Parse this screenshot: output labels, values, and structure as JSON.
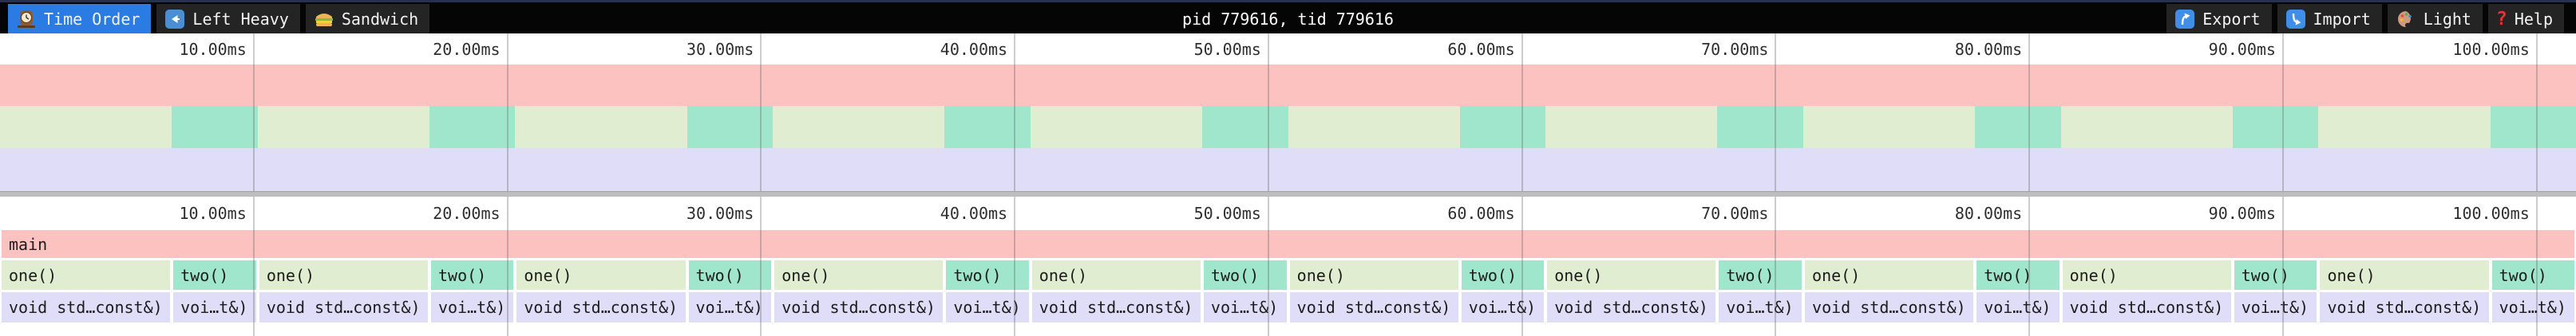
{
  "navbar": {
    "title": "pid 779616, tid 779616",
    "tabs": [
      {
        "label": "Time Order",
        "icon": "clock-icon",
        "active": true
      },
      {
        "label": "Left Heavy",
        "icon": "left-arrow-icon",
        "active": false
      },
      {
        "label": "Sandwich",
        "icon": "sandwich-icon",
        "active": false
      }
    ],
    "actions": [
      {
        "label": "Export",
        "icon": "export-up-arrow-icon"
      },
      {
        "label": "Import",
        "icon": "import-down-arrow-icon"
      },
      {
        "label": "Light",
        "icon": "palette-icon"
      },
      {
        "label": "Help",
        "icon": "help-question-icon"
      }
    ]
  },
  "ruler": {
    "unit": "ms",
    "ticks": [
      {
        "ms": 10,
        "label": "10.00ms"
      },
      {
        "ms": 20,
        "label": "20.00ms"
      },
      {
        "ms": 30,
        "label": "30.00ms"
      },
      {
        "ms": 40,
        "label": "40.00ms"
      },
      {
        "ms": 50,
        "label": "50.00ms"
      },
      {
        "ms": 60,
        "label": "60.00ms"
      },
      {
        "ms": 70,
        "label": "70.00ms"
      },
      {
        "ms": 80,
        "label": "80.00ms"
      },
      {
        "ms": 90,
        "label": "90.00ms"
      },
      {
        "ms": 100,
        "label": "100.00ms"
      }
    ]
  },
  "chart_data": {
    "type": "flamechart",
    "time_unit": "ms",
    "total_ms": 101.55,
    "axis_ticks_ms": [
      10,
      20,
      30,
      40,
      50,
      60,
      70,
      80,
      90,
      100
    ],
    "levels": [
      {
        "depth": 0,
        "frames": [
          {
            "label": "main",
            "color": "main",
            "start_ms": 0,
            "end_ms": 101.55
          }
        ]
      },
      {
        "depth": 1,
        "frames": [
          {
            "label": "one()",
            "color": "one",
            "start_ms": 0,
            "end_ms": 6.77
          },
          {
            "label": "two()",
            "color": "two",
            "start_ms": 6.77,
            "end_ms": 10.16
          },
          {
            "label": "one()",
            "color": "one",
            "start_ms": 10.16,
            "end_ms": 16.93
          },
          {
            "label": "two()",
            "color": "two",
            "start_ms": 16.93,
            "end_ms": 20.31
          },
          {
            "label": "one()",
            "color": "one",
            "start_ms": 20.31,
            "end_ms": 27.08
          },
          {
            "label": "two()",
            "color": "two",
            "start_ms": 27.08,
            "end_ms": 30.47
          },
          {
            "label": "one()",
            "color": "one",
            "start_ms": 30.47,
            "end_ms": 37.24
          },
          {
            "label": "two()",
            "color": "two",
            "start_ms": 37.24,
            "end_ms": 40.62
          },
          {
            "label": "one()",
            "color": "one",
            "start_ms": 40.62,
            "end_ms": 47.39
          },
          {
            "label": "two()",
            "color": "two",
            "start_ms": 47.39,
            "end_ms": 50.78
          },
          {
            "label": "one()",
            "color": "one",
            "start_ms": 50.78,
            "end_ms": 57.55
          },
          {
            "label": "two()",
            "color": "two",
            "start_ms": 57.55,
            "end_ms": 60.93
          },
          {
            "label": "one()",
            "color": "one",
            "start_ms": 60.93,
            "end_ms": 67.7
          },
          {
            "label": "two()",
            "color": "two",
            "start_ms": 67.7,
            "end_ms": 71.09
          },
          {
            "label": "one()",
            "color": "one",
            "start_ms": 71.09,
            "end_ms": 77.86
          },
          {
            "label": "two()",
            "color": "two",
            "start_ms": 77.86,
            "end_ms": 81.24
          },
          {
            "label": "one()",
            "color": "one",
            "start_ms": 81.24,
            "end_ms": 88.01
          },
          {
            "label": "two()",
            "color": "two",
            "start_ms": 88.01,
            "end_ms": 91.4
          },
          {
            "label": "one()",
            "color": "one",
            "start_ms": 91.4,
            "end_ms": 98.17
          },
          {
            "label": "two()",
            "color": "two",
            "start_ms": 98.17,
            "end_ms": 101.55
          }
        ]
      },
      {
        "depth": 2,
        "frames": [
          {
            "label": "void std…const&)",
            "color": "void",
            "start_ms": 0,
            "end_ms": 6.77
          },
          {
            "label": "voi…t&)",
            "color": "void",
            "start_ms": 6.77,
            "end_ms": 10.16
          },
          {
            "label": "void std…const&)",
            "color": "void",
            "start_ms": 10.16,
            "end_ms": 16.93
          },
          {
            "label": "voi…t&)",
            "color": "void",
            "start_ms": 16.93,
            "end_ms": 20.31
          },
          {
            "label": "void std…const&)",
            "color": "void",
            "start_ms": 20.31,
            "end_ms": 27.08
          },
          {
            "label": "voi…t&)",
            "color": "void",
            "start_ms": 27.08,
            "end_ms": 30.47
          },
          {
            "label": "void std…const&)",
            "color": "void",
            "start_ms": 30.47,
            "end_ms": 37.24
          },
          {
            "label": "voi…t&)",
            "color": "void",
            "start_ms": 37.24,
            "end_ms": 40.62
          },
          {
            "label": "void std…const&)",
            "color": "void",
            "start_ms": 40.62,
            "end_ms": 47.39
          },
          {
            "label": "voi…t&)",
            "color": "void",
            "start_ms": 47.39,
            "end_ms": 50.78
          },
          {
            "label": "void std…const&)",
            "color": "void",
            "start_ms": 50.78,
            "end_ms": 57.55
          },
          {
            "label": "voi…t&)",
            "color": "void",
            "start_ms": 57.55,
            "end_ms": 60.93
          },
          {
            "label": "void std…const&)",
            "color": "void",
            "start_ms": 60.93,
            "end_ms": 67.7
          },
          {
            "label": "voi…t&)",
            "color": "void",
            "start_ms": 67.7,
            "end_ms": 71.09
          },
          {
            "label": "void std…const&)",
            "color": "void",
            "start_ms": 71.09,
            "end_ms": 77.86
          },
          {
            "label": "voi…t&)",
            "color": "void",
            "start_ms": 77.86,
            "end_ms": 81.24
          },
          {
            "label": "void std…const&)",
            "color": "void",
            "start_ms": 81.24,
            "end_ms": 88.01
          },
          {
            "label": "voi…t&)",
            "color": "void",
            "start_ms": 88.01,
            "end_ms": 91.4
          },
          {
            "label": "void std…const&)",
            "color": "void",
            "start_ms": 91.4,
            "end_ms": 98.17
          },
          {
            "label": "voi…t&)",
            "color": "void",
            "start_ms": 98.17,
            "end_ms": 101.55
          }
        ]
      }
    ]
  },
  "colors": {
    "navbar_bg": "#050505",
    "navbar_top_strip": "#283050",
    "tab_bg": "#242424",
    "active_tab_bg": "#2b7ce2",
    "frame_main": "#fbc2c0",
    "frame_one": "#e1edd0",
    "frame_two": "#9fe6cd",
    "frame_void": "#dfddf8",
    "divider": "#bdbdbd",
    "gridline": "#bdbdbd",
    "ruler_text": "#2e2e2e"
  }
}
